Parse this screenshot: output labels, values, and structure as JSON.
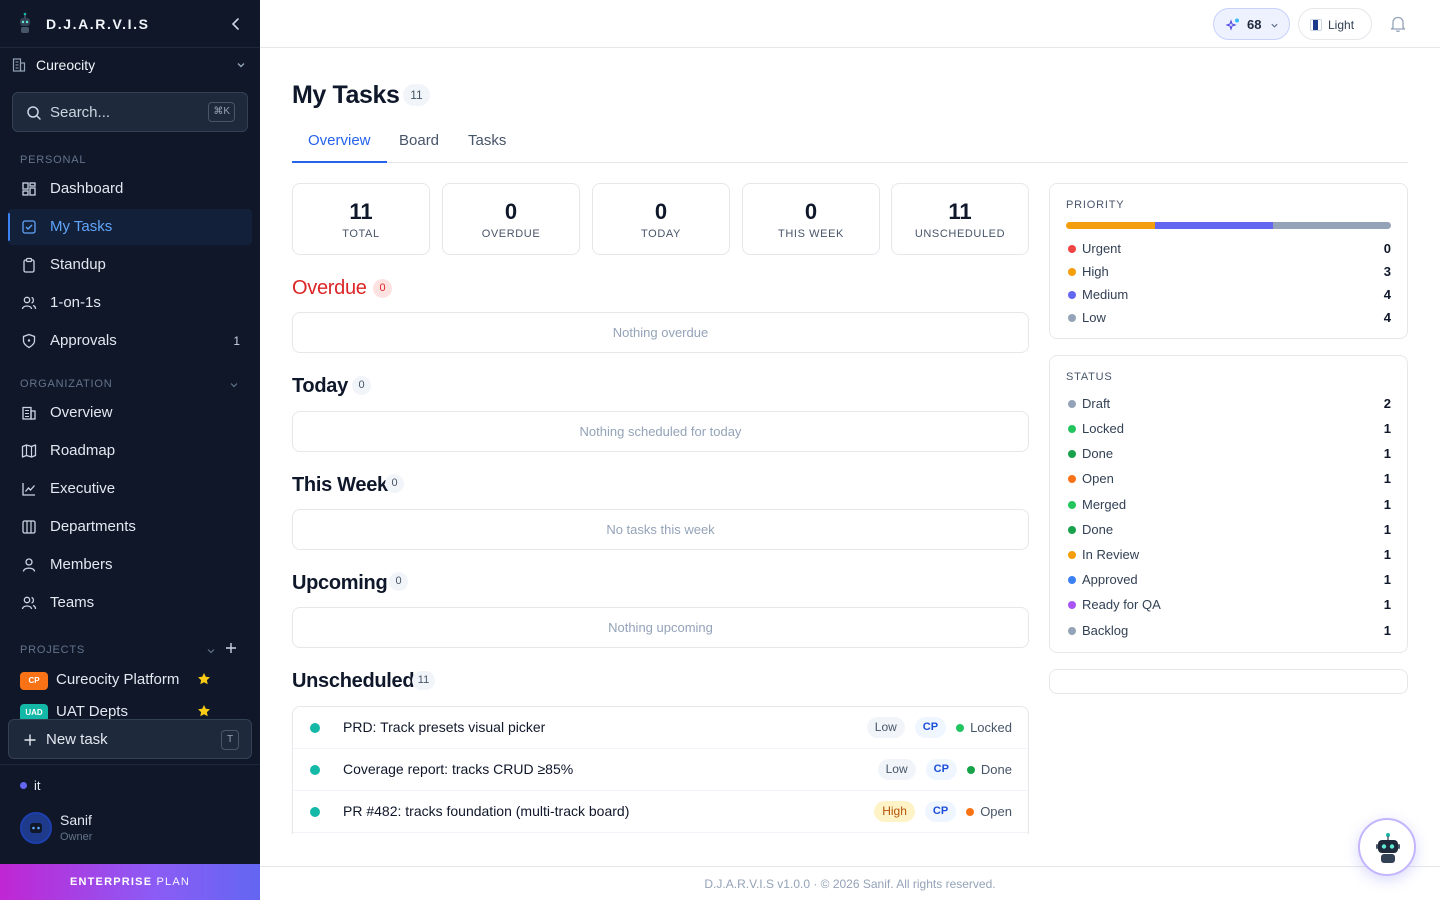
{
  "sidebar": {
    "brand": "D.J.A.R.V.I.S",
    "org": "Cureocity",
    "search_placeholder": "Search...",
    "search_kbd": "⌘K",
    "personal_label": "PERSONAL",
    "personal_items": [
      {
        "label": "Dashboard",
        "icon": "dashboard-icon"
      },
      {
        "label": "My Tasks",
        "icon": "checkbox-icon",
        "active": true
      },
      {
        "label": "Standup",
        "icon": "clipboard-icon"
      },
      {
        "label": "1-on-1s",
        "icon": "users-icon"
      },
      {
        "label": "Approvals",
        "icon": "shield-icon",
        "count": "1"
      }
    ],
    "organization_label": "ORGANIZATION",
    "organization_items": [
      {
        "label": "Overview",
        "icon": "building-icon"
      },
      {
        "label": "Roadmap",
        "icon": "map-icon"
      },
      {
        "label": "Executive",
        "icon": "chart-icon"
      },
      {
        "label": "Departments",
        "icon": "columns-icon"
      },
      {
        "label": "Members",
        "icon": "user-icon"
      },
      {
        "label": "Teams",
        "icon": "users-icon"
      }
    ],
    "projects_label": "PROJECTS",
    "projects": [
      {
        "code": "CP",
        "label": "Cureocity Platform",
        "color": "#f97316"
      },
      {
        "code": "UAD",
        "label": "UAT Depts",
        "color": "#14b8a6"
      }
    ],
    "new_task_label": "New task",
    "new_task_kbd": "T",
    "workspace": "it",
    "user": {
      "name": "Sanif",
      "role": "Owner"
    },
    "plan": {
      "strong": "ENTERPRISE",
      "light": "PLAN"
    }
  },
  "topbar": {
    "karma": "68",
    "theme_label": "Light"
  },
  "main": {
    "title": "My Tasks",
    "title_count": "11",
    "tabs": [
      "Overview",
      "Board",
      "Tasks"
    ],
    "stats": [
      {
        "value": "11",
        "label": "TOTAL"
      },
      {
        "value": "0",
        "label": "OVERDUE"
      },
      {
        "value": "0",
        "label": "TODAY"
      },
      {
        "value": "0",
        "label": "THIS WEEK"
      },
      {
        "value": "11",
        "label": "UNSCHEDULED"
      }
    ],
    "sections": {
      "overdue": {
        "title": "Overdue",
        "count": "0",
        "empty": "Nothing overdue"
      },
      "today": {
        "title": "Today",
        "count": "0",
        "empty": "Nothing scheduled for today"
      },
      "this_week": {
        "title": "This Week",
        "count": "0",
        "empty": "No tasks this week"
      },
      "upcoming": {
        "title": "Upcoming",
        "count": "0",
        "empty": "Nothing upcoming"
      },
      "unscheduled": {
        "title": "Unscheduled",
        "count": "11"
      }
    },
    "tasks": [
      {
        "title": "PRD: Track presets visual picker",
        "priority": "Low",
        "project": "CP",
        "status": "Locked",
        "status_color": "#22c55e"
      },
      {
        "title": "Coverage report: tracks CRUD ≥85%",
        "priority": "Low",
        "project": "CP",
        "status": "Done",
        "status_color": "#16a34a"
      },
      {
        "title": "PR #482: tracks foundation (multi-track board)",
        "priority": "High",
        "project": "CP",
        "status": "Open",
        "status_color": "#f97316"
      }
    ]
  },
  "priority_panel": {
    "title": "PRIORITY",
    "items": [
      {
        "label": "Urgent",
        "value": "0",
        "color": "#ef4444"
      },
      {
        "label": "High",
        "value": "3",
        "color": "#f59e0b"
      },
      {
        "label": "Medium",
        "value": "4",
        "color": "#6366f1"
      },
      {
        "label": "Low",
        "value": "4",
        "color": "#94a3b8"
      }
    ]
  },
  "status_panel": {
    "title": "STATUS",
    "items": [
      {
        "label": "Draft",
        "value": "2",
        "color": "#94a3b8"
      },
      {
        "label": "Locked",
        "value": "1",
        "color": "#22c55e"
      },
      {
        "label": "Done",
        "value": "1",
        "color": "#16a34a"
      },
      {
        "label": "Open",
        "value": "1",
        "color": "#f97316"
      },
      {
        "label": "Merged",
        "value": "1",
        "color": "#22c55e"
      },
      {
        "label": "Done",
        "value": "1",
        "color": "#16a34a"
      },
      {
        "label": "In Review",
        "value": "1",
        "color": "#f59e0b"
      },
      {
        "label": "Approved",
        "value": "1",
        "color": "#3b82f6"
      },
      {
        "label": "Ready for QA",
        "value": "1",
        "color": "#a855f7"
      },
      {
        "label": "Backlog",
        "value": "1",
        "color": "#94a3b8"
      }
    ]
  },
  "footer": "D.J.A.R.V.I.S v1.0.0 · © 2026 Sanif. All rights reserved."
}
